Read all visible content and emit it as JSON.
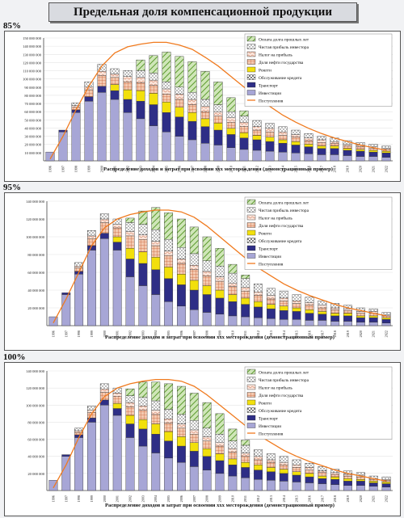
{
  "page_title": "Предельная доля компенсационной продукции",
  "colors": {
    "background": "#f1f2f4",
    "panel": "#ffffff",
    "production_line": "#f07a1e",
    "segments": [
      "#a7a6d6",
      "#ffffff",
      "#2e2e86",
      "#f2e00c",
      "#e8a98a",
      "#f0d2c0",
      "#ffffff",
      "#b8c4d8",
      "#8fbf60"
    ]
  },
  "chart_data": [
    {
      "label": "85%",
      "type": "bar",
      "stacked": true,
      "xlabel": "Распределение доходов и затрат при освоении ххх месторождения (демонстрационный пример)",
      "yticks": [
        "150 000 000",
        "140 000 000",
        "130 000 000",
        "120 000 000",
        "110 000 000",
        "100 000 000",
        "90 000 000",
        "80 000 000",
        "70 000 000",
        "60 000 000",
        "50 000 000",
        "40 000 000",
        "30 000 000",
        "20 000 000",
        "10 000 000"
      ],
      "ylim": [
        0,
        150000000
      ],
      "categories": [
        "1996",
        "1997",
        "1998",
        "1999",
        "2000",
        "2001",
        "2002",
        "2003",
        "2004",
        "2005",
        "2006",
        "2007",
        "2008",
        "2009",
        "2010",
        "2011",
        "2012",
        "2013",
        "2014",
        "2015",
        "2016",
        "2017",
        "2018",
        "2019",
        "2020",
        "2021",
        "2022"
      ],
      "legend": [
        "Оплата долга прошлых лет",
        "Чистая прибыль инвестора",
        "Налог на прибыль",
        "Доля нефти государства",
        "Роялти",
        "Обслуживание кредита",
        "Транспорт",
        "Инвестиции",
        "Поступления"
      ],
      "series": [
        {
          "name": "Инвестиции",
          "values": [
            10,
            33,
            55,
            68,
            78,
            70,
            55,
            48,
            40,
            33,
            28,
            24,
            20,
            18,
            15,
            13,
            12,
            11,
            10,
            9,
            8,
            7,
            7,
            6,
            5,
            5,
            4
          ]
        },
        {
          "name": "Транспорт",
          "values": [
            0,
            2,
            3,
            5,
            7,
            10,
            15,
            20,
            24,
            22,
            22,
            21,
            19,
            17,
            15,
            13,
            12,
            11,
            10,
            9,
            8,
            7,
            7,
            6,
            6,
            5,
            5
          ]
        },
        {
          "name": "Роялти",
          "values": [
            0,
            0,
            0,
            0,
            0,
            7,
            11,
            12,
            13,
            12,
            11,
            10,
            9,
            8,
            7,
            6,
            5,
            5,
            4,
            4,
            3,
            3,
            3,
            2,
            2,
            2,
            2
          ]
        },
        {
          "name": "Доля нефти государства",
          "values": [
            0,
            0,
            3,
            8,
            12,
            8,
            9,
            9,
            9,
            9,
            9,
            9,
            8,
            8,
            7,
            7,
            6,
            6,
            5,
            5,
            4,
            4,
            3,
            3,
            3,
            2,
            2
          ]
        },
        {
          "name": "Налог на прибыль",
          "values": [
            0,
            0,
            2,
            3,
            5,
            4,
            6,
            6,
            6,
            6,
            6,
            6,
            6,
            5,
            5,
            5,
            4,
            4,
            4,
            3,
            3,
            3,
            2,
            2,
            2,
            2,
            1
          ]
        },
        {
          "name": "Чистая прибыль инвестора",
          "values": [
            0,
            0,
            3,
            6,
            8,
            6,
            7,
            8,
            8,
            8,
            8,
            8,
            8,
            8,
            7,
            7,
            7,
            6,
            6,
            5,
            5,
            4,
            4,
            4,
            3,
            3,
            3
          ]
        },
        {
          "name": "Оплата долга прошлых лет",
          "values": [
            0,
            0,
            0,
            0,
            0,
            0,
            0,
            12,
            20,
            34,
            35,
            35,
            32,
            26,
            16,
            6,
            0,
            0,
            0,
            0,
            0,
            0,
            0,
            0,
            0,
            0,
            0
          ]
        }
      ],
      "production_line": [
        2,
        28,
        58,
        85,
        108,
        123,
        130,
        133,
        135,
        135,
        132,
        127,
        118,
        108,
        96,
        84,
        72,
        62,
        52,
        44,
        37,
        31,
        26,
        22,
        18,
        15,
        12
      ]
    },
    {
      "label": "95%",
      "type": "bar",
      "stacked": true,
      "xlabel": "Распределение доходов и затрат при освоении ххх месторождения (демонстрационный пример)",
      "yticks": [
        "140 000 000",
        "120 000 000",
        "100 000 000",
        "80 000 000",
        "60 000 000",
        "40 000 000",
        "20 000 000"
      ],
      "ylim": [
        0,
        140000000
      ],
      "categories": [
        "1996",
        "1997",
        "1998",
        "1999",
        "2000",
        "2001",
        "2002",
        "2003",
        "2004",
        "2005",
        "2006",
        "2007",
        "2008",
        "2009",
        "2010",
        "2011",
        "2012",
        "2013",
        "2014",
        "2015",
        "2016",
        "2017",
        "2018",
        "2019",
        "2020",
        "2021",
        "2022"
      ],
      "legend": [
        "Оплата долга прошлых лет",
        "Чистая прибыль инвестора",
        "Налог на прибыль",
        "Доля нефти государства",
        "Роялти",
        "Обслуживание кредита",
        "Транспорт",
        "Инвестиции",
        "Поступления"
      ],
      "series": [
        {
          "name": "Инвестиции",
          "values": [
            10,
            35,
            58,
            85,
            98,
            85,
            55,
            45,
            35,
            27,
            22,
            18,
            15,
            13,
            11,
            10,
            9,
            8,
            7,
            7,
            6,
            6,
            5,
            5,
            4,
            4,
            3
          ]
        },
        {
          "name": "Транспорт",
          "values": [
            0,
            2,
            3,
            5,
            6,
            9,
            20,
            25,
            28,
            26,
            24,
            22,
            20,
            18,
            16,
            14,
            12,
            11,
            10,
            9,
            8,
            7,
            6,
            6,
            5,
            5,
            4
          ]
        },
        {
          "name": "Роялти",
          "values": [
            0,
            0,
            0,
            0,
            0,
            6,
            12,
            13,
            14,
            13,
            12,
            11,
            10,
            9,
            8,
            7,
            6,
            5,
            5,
            4,
            4,
            3,
            3,
            3,
            2,
            2,
            2
          ]
        },
        {
          "name": "Доля нефти государства",
          "values": [
            0,
            0,
            4,
            8,
            12,
            10,
            14,
            14,
            13,
            13,
            12,
            12,
            11,
            10,
            9,
            8,
            7,
            6,
            6,
            5,
            5,
            4,
            4,
            3,
            3,
            3,
            2
          ]
        },
        {
          "name": "Налог на прибыль",
          "values": [
            0,
            0,
            2,
            3,
            4,
            4,
            5,
            5,
            5,
            5,
            5,
            5,
            5,
            5,
            4,
            4,
            4,
            4,
            3,
            3,
            3,
            3,
            2,
            2,
            2,
            2,
            1
          ]
        },
        {
          "name": "Чистая прибыль инвестора",
          "values": [
            0,
            0,
            4,
            6,
            6,
            6,
            10,
            12,
            13,
            13,
            13,
            13,
            12,
            12,
            11,
            10,
            9,
            8,
            8,
            7,
            6,
            5,
            5,
            4,
            4,
            3,
            3
          ]
        },
        {
          "name": "Оплата долга прошлых лет",
          "values": [
            0,
            0,
            0,
            0,
            0,
            0,
            5,
            15,
            25,
            30,
            32,
            30,
            27,
            20,
            10,
            4,
            0,
            0,
            0,
            0,
            0,
            0,
            0,
            0,
            0,
            0,
            0
          ]
        }
      ],
      "production_line": [
        3,
        30,
        60,
        90,
        110,
        120,
        125,
        128,
        130,
        130,
        128,
        122,
        112,
        100,
        88,
        76,
        65,
        56,
        47,
        40,
        34,
        29,
        24,
        20,
        17,
        14,
        11
      ]
    },
    {
      "label": "100%",
      "type": "bar",
      "stacked": true,
      "xlabel": "Распределение доходов и затрат при освоении ххх месторождения (демонстрационный пример)",
      "yticks": [
        "140 000 000",
        "120 000 000",
        "100 000 000",
        "80 000 000",
        "60 000 000",
        "40 000 000",
        "20 000 000"
      ],
      "ylim": [
        0,
        140000000
      ],
      "categories": [
        "1996",
        "1997",
        "1998",
        "1999",
        "2000",
        "2001",
        "2002",
        "2003",
        "2004",
        "2005",
        "2006",
        "2007",
        "2008",
        "2009",
        "2010",
        "2011",
        "2012",
        "2013",
        "2014",
        "2015",
        "2016",
        "2017",
        "2018",
        "2019",
        "2020",
        "2021",
        "2022"
      ],
      "legend": [
        "Оплата долга прошлых лет",
        "Чистая прибыль инвестора",
        "Налог на прибыль",
        "Доля нефти государства",
        "Роялти",
        "Обслуживание кредита",
        "Транспорт",
        "Инвестиции",
        "Поступления"
      ],
      "series": [
        {
          "name": "Инвестиции",
          "values": [
            12,
            40,
            62,
            80,
            100,
            88,
            62,
            52,
            44,
            38,
            33,
            28,
            24,
            20,
            17,
            15,
            13,
            12,
            11,
            10,
            9,
            8,
            7,
            6,
            6,
            5,
            4
          ]
        },
        {
          "name": "Транспорт",
          "values": [
            0,
            2,
            3,
            5,
            6,
            8,
            16,
            20,
            22,
            20,
            19,
            18,
            16,
            15,
            13,
            12,
            11,
            10,
            9,
            8,
            7,
            6,
            6,
            5,
            5,
            4,
            4
          ]
        },
        {
          "name": "Роялти",
          "values": [
            0,
            0,
            0,
            0,
            0,
            6,
            10,
            11,
            12,
            11,
            11,
            10,
            9,
            8,
            7,
            6,
            6,
            5,
            5,
            4,
            4,
            3,
            3,
            3,
            2,
            2,
            2
          ]
        },
        {
          "name": "Доля нефти государства",
          "values": [
            0,
            0,
            3,
            6,
            9,
            8,
            10,
            11,
            11,
            10,
            10,
            10,
            9,
            9,
            8,
            7,
            6,
            6,
            5,
            5,
            4,
            4,
            3,
            3,
            3,
            2,
            2
          ]
        },
        {
          "name": "Налог на прибыль",
          "values": [
            0,
            0,
            2,
            3,
            4,
            4,
            5,
            5,
            5,
            5,
            5,
            5,
            5,
            4,
            4,
            4,
            4,
            3,
            3,
            3,
            3,
            2,
            2,
            2,
            2,
            1,
            1
          ]
        },
        {
          "name": "Чистая прибыль инвестора",
          "values": [
            0,
            0,
            3,
            5,
            6,
            6,
            8,
            10,
            11,
            11,
            11,
            11,
            10,
            10,
            9,
            9,
            8,
            7,
            7,
            6,
            5,
            5,
            4,
            4,
            3,
            3,
            3
          ]
        },
        {
          "name": "Оплата долга прошлых лет",
          "values": [
            0,
            0,
            0,
            0,
            0,
            0,
            8,
            18,
            22,
            30,
            33,
            32,
            30,
            24,
            14,
            6,
            0,
            0,
            0,
            0,
            0,
            0,
            0,
            0,
            0,
            0,
            0
          ]
        }
      ],
      "production_line": [
        3,
        30,
        62,
        90,
        110,
        120,
        125,
        128,
        130,
        130,
        128,
        122,
        112,
        100,
        88,
        76,
        65,
        56,
        47,
        40,
        34,
        29,
        24,
        20,
        17,
        14,
        11
      ]
    }
  ]
}
